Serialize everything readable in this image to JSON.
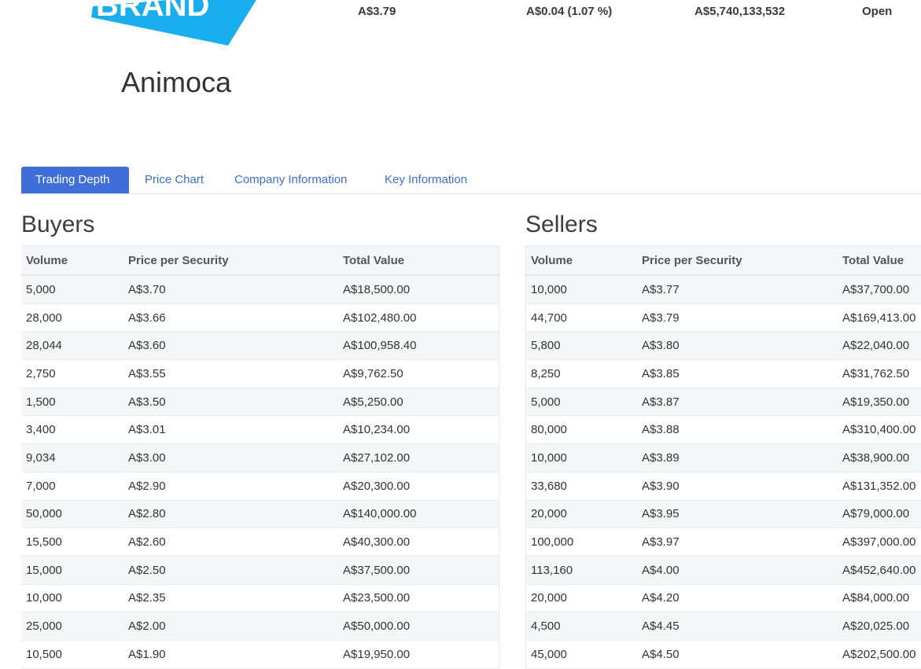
{
  "header": {
    "company_name": "Animoca",
    "last_price": "A$3.79",
    "change": "A$0.04 (1.07 %)",
    "market_cap": "A$5,740,133,532",
    "status": "Open",
    "logo_text": "BRAND",
    "brand_color": "#1aaeee"
  },
  "tabs": [
    {
      "label": "Trading Depth",
      "active": true
    },
    {
      "label": "Price Chart",
      "active": false
    },
    {
      "label": "Company Information",
      "active": false
    },
    {
      "label": "Key Information",
      "active": false
    }
  ],
  "buyers": {
    "title": "Buyers",
    "headers": [
      "Volume",
      "Price per Security",
      "Total Value"
    ],
    "rows": [
      [
        "5,000",
        "A$3.70",
        "A$18,500.00"
      ],
      [
        "28,000",
        "A$3.66",
        "A$102,480.00"
      ],
      [
        "28,044",
        "A$3.60",
        "A$100,958.40"
      ],
      [
        "2,750",
        "A$3.55",
        "A$9,762.50"
      ],
      [
        "1,500",
        "A$3.50",
        "A$5,250.00"
      ],
      [
        "3,400",
        "A$3.01",
        "A$10,234.00"
      ],
      [
        "9,034",
        "A$3.00",
        "A$27,102.00"
      ],
      [
        "7,000",
        "A$2.90",
        "A$20,300.00"
      ],
      [
        "50,000",
        "A$2.80",
        "A$140,000.00"
      ],
      [
        "15,500",
        "A$2.60",
        "A$40,300.00"
      ],
      [
        "15,000",
        "A$2.50",
        "A$37,500.00"
      ],
      [
        "10,000",
        "A$2.35",
        "A$23,500.00"
      ],
      [
        "25,000",
        "A$2.00",
        "A$50,000.00"
      ],
      [
        "10,500",
        "A$1.90",
        "A$19,950.00"
      ]
    ]
  },
  "sellers": {
    "title": "Sellers",
    "headers": [
      "Volume",
      "Price per Security",
      "Total Value"
    ],
    "rows": [
      [
        "10,000",
        "A$3.77",
        "A$37,700.00"
      ],
      [
        "44,700",
        "A$3.79",
        "A$169,413.00"
      ],
      [
        "5,800",
        "A$3.80",
        "A$22,040.00"
      ],
      [
        "8,250",
        "A$3.85",
        "A$31,762.50"
      ],
      [
        "5,000",
        "A$3.87",
        "A$19,350.00"
      ],
      [
        "80,000",
        "A$3.88",
        "A$310,400.00"
      ],
      [
        "10,000",
        "A$3.89",
        "A$38,900.00"
      ],
      [
        "33,680",
        "A$3.90",
        "A$131,352.00"
      ],
      [
        "20,000",
        "A$3.95",
        "A$79,000.00"
      ],
      [
        "100,000",
        "A$3.97",
        "A$397,000.00"
      ],
      [
        "113,160",
        "A$4.00",
        "A$452,640.00"
      ],
      [
        "20,000",
        "A$4.20",
        "A$84,000.00"
      ],
      [
        "4,500",
        "A$4.45",
        "A$20,025.00"
      ],
      [
        "45,000",
        "A$4.50",
        "A$202,500.00"
      ]
    ]
  }
}
